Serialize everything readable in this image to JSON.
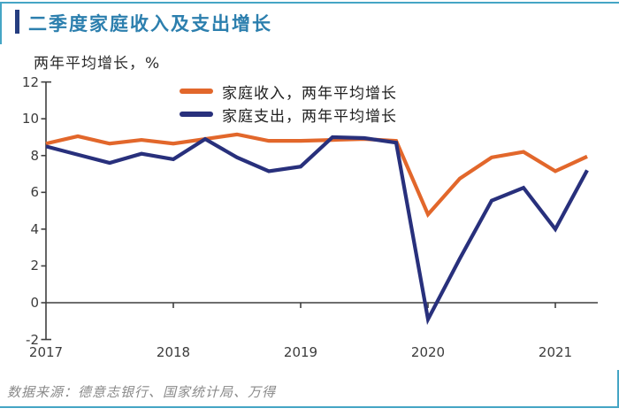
{
  "card": {
    "title": "二季度家庭收入及支出增长",
    "source": "数据来源：德意志银行、国家统计局、万得",
    "accent_teal": "#45a5c5",
    "accent_navy": "#263e80",
    "title_color": "#2c7fae"
  },
  "chart_data": {
    "type": "line",
    "title": "二季度家庭收入及支出增长",
    "ylabel": "两年平均增长，%",
    "ylim": [
      -2,
      12
    ],
    "yticks": [
      "12",
      "10",
      "8",
      "6",
      "4",
      "2",
      "0",
      "-2"
    ],
    "ytick_values": [
      12,
      10,
      8,
      6,
      4,
      2,
      0,
      -2
    ],
    "xticks": [
      "2017",
      "2018",
      "2019",
      "2020",
      "2021"
    ],
    "grid": false,
    "legend_position": "top-center",
    "x": [
      "2017Q1",
      "2017Q2",
      "2017Q3",
      "2017Q4",
      "2018Q1",
      "2018Q2",
      "2018Q3",
      "2018Q4",
      "2019Q1",
      "2019Q2",
      "2019Q3",
      "2019Q4",
      "2020Q1",
      "2020Q2",
      "2020Q3",
      "2020Q4",
      "2021Q1",
      "2021Q2"
    ],
    "series": [
      {
        "name": "家庭收入，两年平均增长",
        "color": "#e2672b",
        "values": [
          8.65,
          9.05,
          8.65,
          8.85,
          8.65,
          8.9,
          9.15,
          8.8,
          8.8,
          8.85,
          8.9,
          8.8,
          4.8,
          6.75,
          7.9,
          8.2,
          7.15,
          7.95
        ]
      },
      {
        "name": "家庭支出，两年平均增长",
        "color": "#28307c",
        "values": [
          8.5,
          8.05,
          7.6,
          8.1,
          7.8,
          8.9,
          7.9,
          7.15,
          7.4,
          9.0,
          8.95,
          8.7,
          -0.9,
          2.4,
          5.55,
          6.25,
          4.0,
          7.2
        ]
      }
    ]
  }
}
